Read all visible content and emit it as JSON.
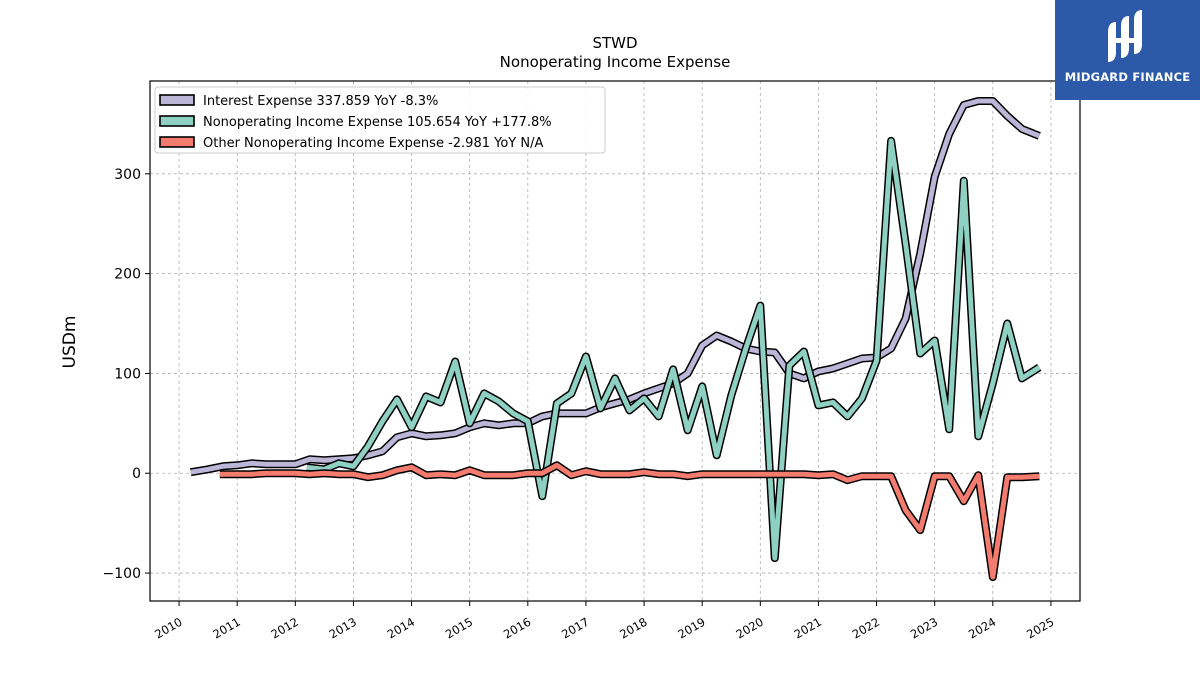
{
  "chart_data": {
    "type": "line",
    "title": "STWD",
    "subtitle": "Nonoperating Income Expense",
    "ylabel": "USDm",
    "xlabel": "",
    "xlim": [
      2009.5,
      2025.5
    ],
    "ylim": [
      -128,
      393
    ],
    "x_ticks": [
      "2010",
      "2011",
      "2012",
      "2013",
      "2014",
      "2015",
      "2016",
      "2017",
      "2018",
      "2019",
      "2020",
      "2021",
      "2022",
      "2023",
      "2024",
      "2025"
    ],
    "y_ticks": [
      -100,
      0,
      100,
      200,
      300
    ],
    "y_tick_labels": [
      "−100",
      "0",
      "100",
      "200",
      "300"
    ],
    "grid": true,
    "legend_position": "top-left",
    "series": [
      {
        "name": "Interest Expense",
        "legend": "Interest Expense  337.859 YoY -8.3%",
        "color": "#bcb6d8",
        "x": [
          2010.2,
          2010.5,
          2010.75,
          2011.0,
          2011.25,
          2011.5,
          2011.75,
          2012.0,
          2012.25,
          2012.5,
          2012.75,
          2013.0,
          2013.25,
          2013.5,
          2013.75,
          2014.0,
          2014.25,
          2014.5,
          2014.75,
          2015.0,
          2015.25,
          2015.5,
          2015.75,
          2016.0,
          2016.25,
          2016.5,
          2016.75,
          2017.0,
          2017.25,
          2017.5,
          2017.75,
          2018.0,
          2018.25,
          2018.5,
          2018.75,
          2019.0,
          2019.25,
          2019.5,
          2019.75,
          2020.0,
          2020.25,
          2020.5,
          2020.75,
          2021.0,
          2021.25,
          2021.5,
          2021.75,
          2022.0,
          2022.25,
          2022.5,
          2022.75,
          2023.0,
          2023.25,
          2023.5,
          2023.75,
          2024.0,
          2024.25,
          2024.5,
          2024.8
        ],
        "values": [
          1,
          4,
          7,
          8,
          10,
          9,
          9,
          9,
          14,
          13,
          14,
          15,
          18,
          22,
          36,
          40,
          37,
          38,
          40,
          46,
          50,
          48,
          50,
          50,
          57,
          60,
          60,
          60,
          66,
          70,
          74,
          80,
          85,
          90,
          100,
          128,
          138,
          132,
          125,
          122,
          121,
          100,
          95,
          102,
          105,
          110,
          115,
          116,
          125,
          155,
          220,
          297,
          340,
          369,
          373,
          373,
          358,
          345,
          338
        ]
      },
      {
        "name": "Nonoperating Income Expense",
        "legend": "Nonoperating Income Expense  105.654 YoY +177.8%",
        "color": "#8ed1c3",
        "x": [
          2012.2,
          2012.5,
          2012.75,
          2013.0,
          2013.25,
          2013.5,
          2013.75,
          2014.0,
          2014.25,
          2014.5,
          2014.75,
          2015.0,
          2015.25,
          2015.5,
          2015.75,
          2016.0,
          2016.25,
          2016.5,
          2016.75,
          2017.0,
          2017.25,
          2017.5,
          2017.75,
          2018.0,
          2018.25,
          2018.5,
          2018.75,
          2019.0,
          2019.25,
          2019.5,
          2019.75,
          2020.0,
          2020.25,
          2020.5,
          2020.75,
          2021.0,
          2021.25,
          2021.5,
          2021.75,
          2022.0,
          2022.25,
          2022.5,
          2022.75,
          2023.0,
          2023.25,
          2023.5,
          2023.75,
          2024.0,
          2024.25,
          2024.5,
          2024.8
        ],
        "values": [
          6,
          4,
          10,
          7,
          27,
          52,
          74,
          46,
          77,
          71,
          112,
          50,
          80,
          72,
          60,
          52,
          -23,
          70,
          80,
          117,
          65,
          95,
          63,
          75,
          57,
          104,
          43,
          87,
          18,
          78,
          125,
          168,
          -85,
          108,
          122,
          68,
          71,
          57,
          75,
          113,
          333,
          230,
          120,
          133,
          44,
          293,
          37,
          90,
          150,
          95,
          106
        ]
      },
      {
        "name": "Other Nonoperating Income Expense",
        "legend": "Other Nonoperating Income Expense  -2.981 YoY N/A",
        "color": "#f47c6f",
        "x": [
          2010.7,
          2011.0,
          2011.25,
          2011.5,
          2011.75,
          2012.0,
          2012.25,
          2012.5,
          2012.75,
          2013.0,
          2013.25,
          2013.5,
          2013.75,
          2014.0,
          2014.25,
          2014.5,
          2014.75,
          2015.0,
          2015.25,
          2015.5,
          2015.75,
          2016.0,
          2016.25,
          2016.5,
          2016.75,
          2017.0,
          2017.25,
          2017.5,
          2017.75,
          2018.0,
          2018.25,
          2018.5,
          2018.75,
          2019.0,
          2019.25,
          2019.5,
          2019.75,
          2020.0,
          2020.25,
          2020.5,
          2020.75,
          2021.0,
          2021.25,
          2021.5,
          2021.75,
          2022.0,
          2022.25,
          2022.5,
          2022.75,
          2023.0,
          2023.25,
          2023.5,
          2023.75,
          2024.0,
          2024.25,
          2024.5,
          2024.8
        ],
        "values": [
          -1,
          -1,
          -1,
          0,
          0,
          0,
          -1,
          0,
          -1,
          -1,
          -4,
          -2,
          3,
          6,
          -2,
          -1,
          -2,
          3,
          -2,
          -2,
          -2,
          0,
          0,
          8,
          -2,
          2,
          -1,
          -1,
          -1,
          1,
          -1,
          -1,
          -3,
          -1,
          -1,
          -1,
          -1,
          -1,
          -1,
          -1,
          -1,
          -2,
          -1,
          -7,
          -3,
          -3,
          -3,
          -37,
          -57,
          -3,
          -3,
          -28,
          -2,
          -104,
          -4,
          -4,
          -3
        ]
      }
    ]
  }
}
